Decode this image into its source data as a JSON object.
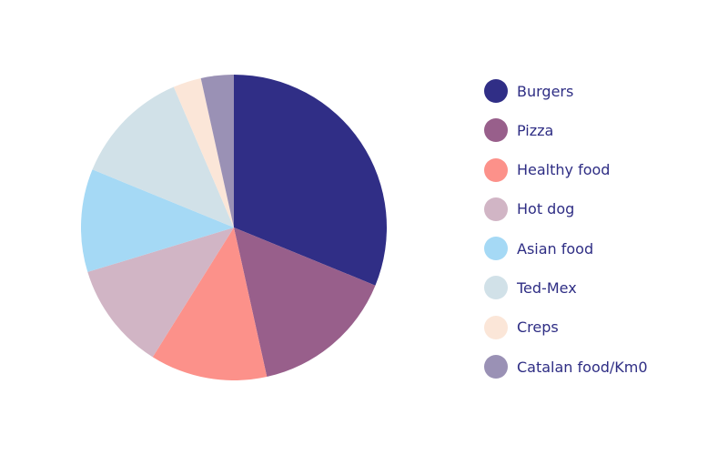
{
  "chart_data": {
    "type": "pie",
    "start": "top",
    "direction": "clockwise",
    "title": "",
    "legend_position": "right",
    "slices": [
      {
        "label": "Burgers",
        "value": 31.5,
        "color": "#302e86"
      },
      {
        "label": "Pizza",
        "value": 15.5,
        "color": "#985f8b"
      },
      {
        "label": "Healthy food",
        "value": 12.5,
        "color": "#fc918a"
      },
      {
        "label": "Hot dog",
        "value": 11.5,
        "color": "#d1b5c5"
      },
      {
        "label": "Asian food",
        "value": 11.0,
        "color": "#a5d9f5"
      },
      {
        "label": "Ted-Mex",
        "value": 12.5,
        "color": "#d1e1e8"
      },
      {
        "label": "Creps",
        "value": 3.0,
        "color": "#fbe6d8"
      },
      {
        "label": "Catalan food/Km0",
        "value": 3.5,
        "color": "#9a91b5"
      }
    ]
  }
}
